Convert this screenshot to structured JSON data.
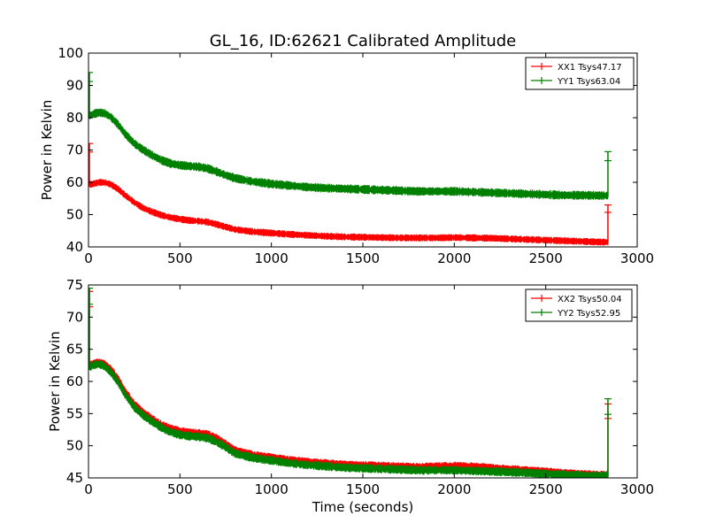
{
  "chart_data": [
    {
      "type": "line",
      "title": "GL_16, ID:62621 Calibrated Amplitude",
      "xlabel": "",
      "ylabel": "Power in Kelvin",
      "xlim": [
        0,
        3000
      ],
      "ylim": [
        40,
        100
      ],
      "xticks": [
        "0",
        "500",
        "1000",
        "1500",
        "2000",
        "2500",
        "3000"
      ],
      "yticks": [
        "40",
        "50",
        "60",
        "70",
        "80",
        "90",
        "100"
      ],
      "grid": false,
      "legend": "top-right",
      "series": [
        {
          "name": "XX1 Tsys47.17",
          "color": "#ff0000",
          "x": [
            0,
            10,
            30,
            60,
            90,
            120,
            160,
            200,
            250,
            300,
            350,
            400,
            450,
            500,
            550,
            600,
            650,
            700,
            750,
            800,
            900,
            1000,
            1100,
            1200,
            1300,
            1400,
            1500,
            1600,
            1700,
            1800,
            1900,
            2000,
            2100,
            2200,
            2300,
            2400,
            2500,
            2600,
            2700,
            2800,
            2840
          ],
          "y": [
            60,
            59.3,
            59.6,
            60.0,
            59.9,
            59.4,
            58.0,
            56.0,
            53.8,
            52.0,
            50.8,
            49.8,
            49.1,
            48.6,
            48.2,
            48.0,
            47.7,
            47.0,
            46.2,
            45.4,
            44.7,
            44.3,
            43.9,
            43.6,
            43.3,
            43.1,
            43.0,
            42.9,
            42.8,
            42.8,
            42.8,
            42.9,
            42.8,
            42.7,
            42.5,
            42.3,
            42.1,
            41.9,
            41.7,
            41.5,
            41.5
          ],
          "spikes": [
            {
              "x": 0,
              "y": [
                59,
                72
              ]
            },
            {
              "x": 2840,
              "y": [
                41.5,
                53
              ]
            }
          ],
          "spread": 0.8
        },
        {
          "name": "YY1 Tsys63.04",
          "color": "#008000",
          "x": [
            0,
            10,
            30,
            60,
            90,
            120,
            160,
            200,
            250,
            300,
            350,
            400,
            450,
            500,
            550,
            600,
            650,
            700,
            750,
            800,
            900,
            1000,
            1100,
            1200,
            1300,
            1400,
            1500,
            1600,
            1700,
            1800,
            1900,
            2000,
            2100,
            2200,
            2300,
            2400,
            2500,
            2600,
            2700,
            2800,
            2840
          ],
          "y": [
            81,
            80.7,
            81.2,
            81.6,
            81.3,
            80.3,
            78.0,
            75.0,
            72.0,
            70.0,
            68.3,
            66.8,
            65.8,
            65.3,
            65.0,
            64.8,
            64.3,
            63.3,
            62.2,
            61.3,
            60.2,
            59.5,
            59.0,
            58.5,
            58.2,
            58.0,
            57.8,
            57.6,
            57.4,
            57.2,
            57.2,
            57.2,
            57.0,
            56.8,
            56.6,
            56.4,
            56.2,
            56.0,
            56.0,
            55.9,
            55.9
          ],
          "spikes": [
            {
              "x": 0,
              "y": [
                80,
                94
              ]
            },
            {
              "x": 2840,
              "y": [
                55.5,
                69.5
              ]
            }
          ],
          "spread": 1.0
        }
      ]
    },
    {
      "type": "line",
      "title": "",
      "xlabel": "Time (seconds)",
      "ylabel": "Power in Kelvin",
      "xlim": [
        0,
        3000
      ],
      "ylim": [
        45,
        75
      ],
      "xticks": [
        "0",
        "500",
        "1000",
        "1500",
        "2000",
        "2500",
        "3000"
      ],
      "yticks": [
        "45",
        "50",
        "55",
        "60",
        "65",
        "70",
        "75"
      ],
      "grid": false,
      "legend": "top-right",
      "series": [
        {
          "name": "XX2 Tsys50.04",
          "color": "#ff0000",
          "x": [
            0,
            10,
            30,
            60,
            90,
            120,
            160,
            200,
            250,
            300,
            350,
            400,
            450,
            500,
            550,
            600,
            650,
            700,
            750,
            800,
            900,
            1000,
            1100,
            1200,
            1300,
            1400,
            1500,
            1600,
            1700,
            1800,
            1900,
            2000,
            2100,
            2200,
            2300,
            2400,
            2500,
            2600,
            2700,
            2800,
            2840
          ],
          "y": [
            62.8,
            62.6,
            62.9,
            63.0,
            62.7,
            62.0,
            60.5,
            58.5,
            56.5,
            55.2,
            54.2,
            53.3,
            52.7,
            52.3,
            52.1,
            52.0,
            51.8,
            51.2,
            50.3,
            49.3,
            48.6,
            48.2,
            47.8,
            47.5,
            47.3,
            47.1,
            47.0,
            46.9,
            46.8,
            46.7,
            46.8,
            46.9,
            46.8,
            46.6,
            46.4,
            46.2,
            46.0,
            45.8,
            45.6,
            45.5,
            45.5
          ],
          "spikes": [
            {
              "x": 0,
              "y": [
                62,
                74
              ]
            },
            {
              "x": 2840,
              "y": [
                45.2,
                56.5
              ]
            }
          ],
          "spread": 0.45
        },
        {
          "name": "YY2 Tsys52.95",
          "color": "#008000",
          "x": [
            0,
            10,
            30,
            60,
            90,
            120,
            160,
            200,
            250,
            300,
            350,
            400,
            450,
            500,
            550,
            600,
            650,
            700,
            750,
            800,
            900,
            1000,
            1100,
            1200,
            1300,
            1400,
            1500,
            1600,
            1700,
            1800,
            1900,
            2000,
            2100,
            2200,
            2300,
            2400,
            2500,
            2600,
            2700,
            2800,
            2840
          ],
          "y": [
            62.5,
            62.3,
            62.6,
            62.7,
            62.3,
            61.5,
            60.0,
            58.0,
            56.0,
            54.7,
            53.7,
            52.8,
            52.1,
            51.7,
            51.5,
            51.4,
            51.2,
            50.6,
            49.8,
            48.8,
            48.1,
            47.7,
            47.3,
            47.0,
            46.8,
            46.6,
            46.5,
            46.4,
            46.3,
            46.2,
            46.2,
            46.2,
            46.1,
            46.0,
            45.9,
            45.8,
            45.6,
            45.5,
            45.4,
            45.3,
            45.3
          ],
          "spikes": [
            {
              "x": 0,
              "y": [
                62,
                74.5
              ]
            },
            {
              "x": 2840,
              "y": [
                45.2,
                57.3
              ]
            }
          ],
          "spread": 0.5
        }
      ]
    }
  ]
}
